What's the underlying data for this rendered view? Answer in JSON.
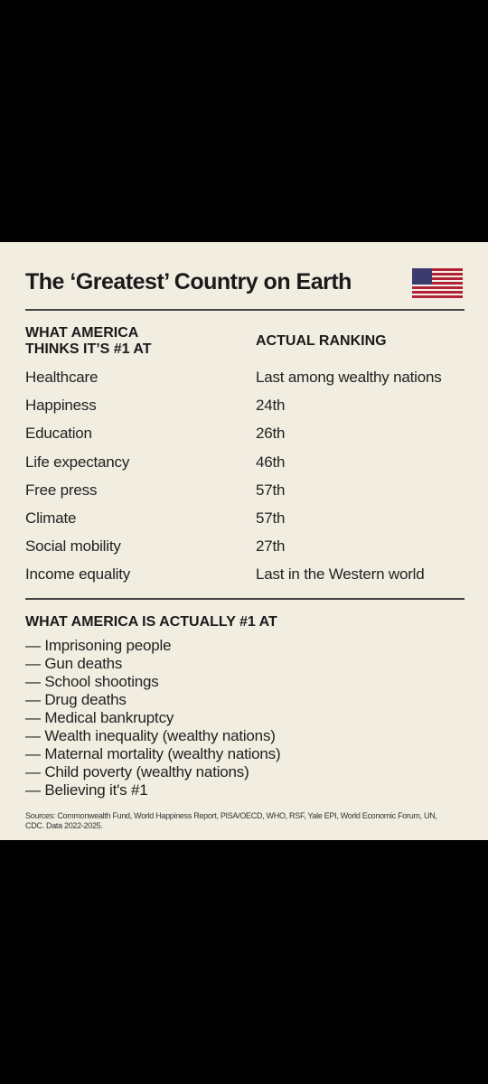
{
  "header": {
    "title": "The ‘Greatest’ Country on Earth"
  },
  "table": {
    "headers": [
      "WHAT AMERICA THINKS IT’S #1 AT",
      "ACTUAL RANKING"
    ],
    "rows": [
      [
        "Healthcare",
        "Last among wealthy nations"
      ],
      [
        "Happiness",
        "24th"
      ],
      [
        "Education",
        "26th"
      ],
      [
        "Life expectancy",
        "46th"
      ],
      [
        "Free press",
        "57th"
      ],
      [
        "Climate",
        "57th"
      ],
      [
        "Social mobility",
        "27th"
      ],
      [
        "Income equality",
        "Last in the Western world"
      ]
    ]
  },
  "section": {
    "title": "WHAT AMERICA IS ACTUALLY #1 AT",
    "items": [
      "— Imprisoning people",
      "— Gun deaths",
      "— School shootings",
      "— Drug deaths",
      "— Medical bankruptcy",
      "— Wealth inequality (wealthy nations)",
      "— Maternal mortality (wealthy nations)",
      "— Child poverty (wealthy nations)",
      "— Believing it's #1"
    ]
  },
  "sources": "Sources: Commonwealth Fund, World Happiness Report, PISA/OECD, WHO, RSF, Yale EPI, World Economic Forum, UN, CDC. Data 2022-2025."
}
